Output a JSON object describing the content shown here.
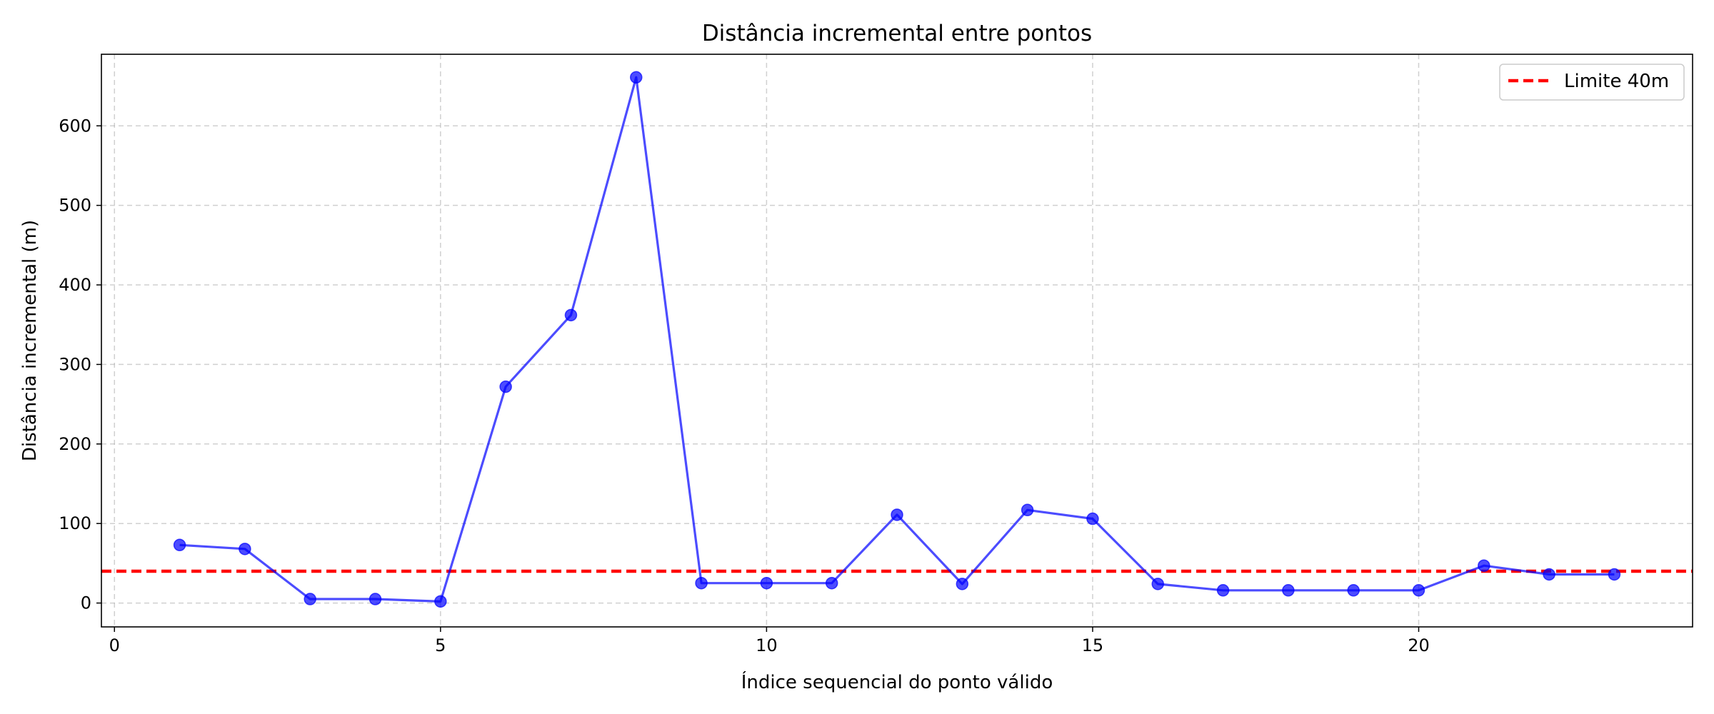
{
  "chart_data": {
    "type": "line",
    "title": "Distância incremental entre pontos",
    "xlabel": "Índice sequencial do ponto válido",
    "ylabel": "Distância incremental (m)",
    "xlim": [
      -0.2,
      24.2
    ],
    "ylim": [
      -30,
      690
    ],
    "xticks": [
      0,
      5,
      10,
      15,
      20
    ],
    "yticks": [
      0,
      100,
      200,
      300,
      400,
      500,
      600
    ],
    "grid": true,
    "legend_position": "top-right",
    "series": [
      {
        "name": "",
        "color": "#0000ff",
        "x": [
          1,
          2,
          3,
          4,
          5,
          6,
          7,
          8,
          9,
          10,
          11,
          12,
          13,
          14,
          15,
          16,
          17,
          18,
          19,
          20,
          21,
          22,
          23
        ],
        "y": [
          73,
          68,
          5,
          5,
          2,
          272,
          362,
          661,
          25,
          25,
          25,
          111,
          24,
          117,
          106,
          24,
          16,
          16,
          16,
          16,
          47,
          36,
          36
        ]
      }
    ],
    "reference_lines": [
      {
        "name": "Limite 40m",
        "y": 40,
        "color": "#ff0000",
        "style": "dashed"
      }
    ]
  }
}
